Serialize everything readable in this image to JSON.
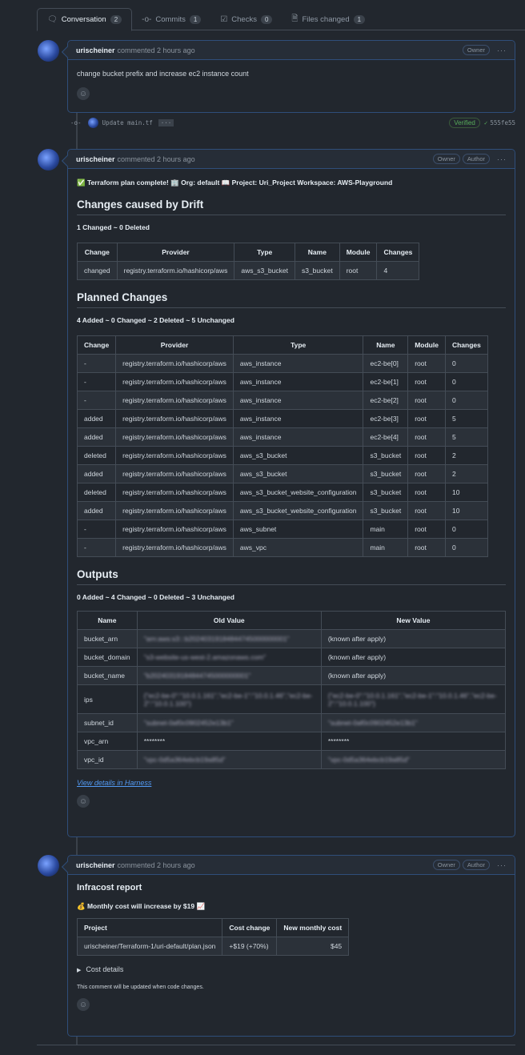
{
  "tabs": [
    {
      "label": "Conversation",
      "count": "2",
      "icon": "comment-discussion-icon"
    },
    {
      "label": "Commits",
      "count": "1",
      "icon": "git-commit-icon"
    },
    {
      "label": "Checks",
      "count": "0",
      "icon": "checklist-icon"
    },
    {
      "label": "Files changed",
      "count": "1",
      "icon": "file-diff-icon"
    }
  ],
  "comment1": {
    "author": "urischeiner",
    "meta": "commented 2 hours ago",
    "badges": [
      "Owner"
    ],
    "body": "change bucket prefix and increase ec2 instance count"
  },
  "commit": {
    "message": "Update main.tf",
    "verified": "Verified",
    "sha": "555fe55"
  },
  "comment2": {
    "author": "urischeiner",
    "meta": "commented 2 hours ago",
    "badges": [
      "Owner",
      "Author"
    ],
    "summary": "✅ Terraform plan complete! 🏢 Org: default 📖 Project: Uri_Project Workspace: AWS-Playground",
    "drift": {
      "title": "Changes caused by Drift",
      "stats": "1 Changed ~ 0 Deleted",
      "headers": [
        "Change",
        "Provider",
        "Type",
        "Name",
        "Module",
        "Changes"
      ],
      "rows": [
        [
          "changed",
          "registry.terraform.io/hashicorp/aws",
          "aws_s3_bucket",
          "s3_bucket",
          "root",
          "4"
        ]
      ]
    },
    "planned": {
      "title": "Planned Changes",
      "stats": "4 Added ~ 0 Changed ~ 2 Deleted ~ 5 Unchanged",
      "headers": [
        "Change",
        "Provider",
        "Type",
        "Name",
        "Module",
        "Changes"
      ],
      "rows": [
        [
          "-",
          "registry.terraform.io/hashicorp/aws",
          "aws_instance",
          "ec2-be[0]",
          "root",
          "0"
        ],
        [
          "-",
          "registry.terraform.io/hashicorp/aws",
          "aws_instance",
          "ec2-be[1]",
          "root",
          "0"
        ],
        [
          "-",
          "registry.terraform.io/hashicorp/aws",
          "aws_instance",
          "ec2-be[2]",
          "root",
          "0"
        ],
        [
          "added",
          "registry.terraform.io/hashicorp/aws",
          "aws_instance",
          "ec2-be[3]",
          "root",
          "5"
        ],
        [
          "added",
          "registry.terraform.io/hashicorp/aws",
          "aws_instance",
          "ec2-be[4]",
          "root",
          "5"
        ],
        [
          "deleted",
          "registry.terraform.io/hashicorp/aws",
          "aws_s3_bucket",
          "s3_bucket",
          "root",
          "2"
        ],
        [
          "added",
          "registry.terraform.io/hashicorp/aws",
          "aws_s3_bucket",
          "s3_bucket",
          "root",
          "2"
        ],
        [
          "deleted",
          "registry.terraform.io/hashicorp/aws",
          "aws_s3_bucket_website_configuration",
          "s3_bucket",
          "root",
          "10"
        ],
        [
          "added",
          "registry.terraform.io/hashicorp/aws",
          "aws_s3_bucket_website_configuration",
          "s3_bucket",
          "root",
          "10"
        ],
        [
          "-",
          "registry.terraform.io/hashicorp/aws",
          "aws_subnet",
          "main",
          "root",
          "0"
        ],
        [
          "-",
          "registry.terraform.io/hashicorp/aws",
          "aws_vpc",
          "main",
          "root",
          "0"
        ]
      ]
    },
    "outputs": {
      "title": "Outputs",
      "stats": "0 Added ~ 4 Changed ~ 0 Deleted ~ 3 Unchanged",
      "headers": [
        "Name",
        "Old Value",
        "New Value"
      ],
      "rows": [
        [
          "bucket_arn",
          "\"arn:aws:s3:::b20240319184844745000000001\"",
          "(known after apply)"
        ],
        [
          "bucket_domain",
          "\"s3-website-us-west-2.amazonaws.com\"",
          "(known after apply)"
        ],
        [
          "bucket_name",
          "\"b20240319184844745000000001\"",
          "(known after apply)"
        ],
        [
          "ips",
          "{\"ec2-be-0\":\"10.0.1.161\",\"ec2-be-1\":\"10.0.1.46\",\"ec2-be-2\":\"10.0.1.100\"}",
          "{\"ec2-be-0\":\"10.0.1.161\",\"ec2-be-1\":\"10.0.1.46\",\"ec2-be-2\":\"10.0.1.100\"}"
        ],
        [
          "subnet_id",
          "\"subnet-0af0c0902452e13b1\"",
          "\"subnet-0af0c0902452e13b1\""
        ],
        [
          "vpc_arn",
          "********",
          "********"
        ],
        [
          "vpc_id",
          "\"vpc-0d5a364ebcb19a85d\"",
          "\"vpc-0d5a364ebcb19a85d\""
        ]
      ]
    },
    "link": "View details in Harness"
  },
  "comment3": {
    "author": "urischeiner",
    "meta": "commented 2 hours ago",
    "badges": [
      "Owner",
      "Author"
    ],
    "title": "Infracost report",
    "headline": "💰 Monthly cost will increase by $19 📈",
    "headers": [
      "Project",
      "Cost change",
      "New monthly cost"
    ],
    "rows": [
      [
        "urischeiner/Terraform-1/uri-default/plan.json",
        "+$19 (+70%)",
        "$45"
      ]
    ],
    "details": "Cost details",
    "note": "This comment will be updated when code changes."
  }
}
